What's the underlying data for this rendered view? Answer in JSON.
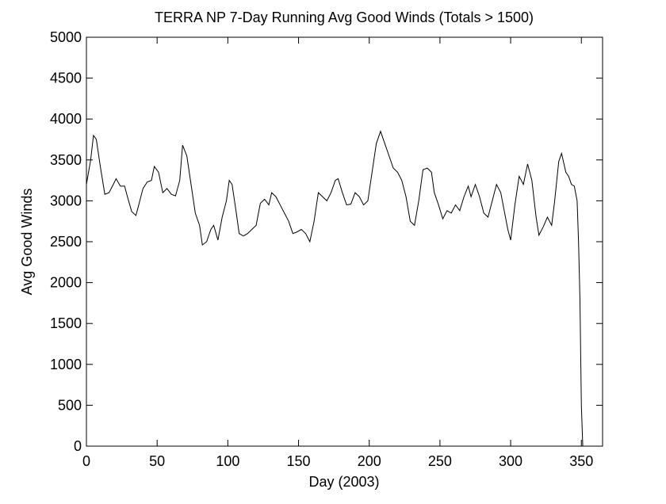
{
  "chart_data": {
    "type": "line",
    "title": "TERRA NP 7-Day Running Avg Good Winds (Totals > 1500)",
    "x_label": "Day (2003)",
    "y_label": "Avg Good Winds",
    "xlim": [
      0,
      365
    ],
    "ylim": [
      0,
      5000
    ],
    "xticks": [
      0,
      50,
      100,
      150,
      200,
      250,
      300,
      350
    ],
    "yticks": [
      0,
      500,
      1000,
      1500,
      2000,
      2500,
      3000,
      3500,
      4000,
      4500,
      5000
    ],
    "color": "#000000",
    "x": [
      0,
      3,
      5,
      7,
      10,
      13,
      16,
      19,
      21,
      24,
      27,
      29,
      32,
      35,
      37,
      40,
      43,
      46,
      48,
      51,
      54,
      57,
      60,
      63,
      66,
      68,
      71,
      74,
      77,
      80,
      82,
      85,
      88,
      90,
      93,
      96,
      99,
      101,
      103,
      106,
      108,
      111,
      114,
      117,
      120,
      123,
      126,
      129,
      131,
      134,
      137,
      140,
      143,
      146,
      149,
      152,
      155,
      158,
      161,
      164,
      167,
      170,
      173,
      176,
      178,
      181,
      184,
      187,
      190,
      193,
      196,
      199,
      202,
      205,
      208,
      211,
      214,
      217,
      220,
      223,
      226,
      229,
      232,
      235,
      238,
      241,
      244,
      246,
      249,
      252,
      255,
      258,
      261,
      264,
      267,
      270,
      272,
      275,
      278,
      281,
      284,
      287,
      290,
      293,
      295,
      298,
      300,
      303,
      306,
      309,
      312,
      315,
      318,
      320,
      323,
      326,
      329,
      331,
      334,
      336,
      339,
      341,
      343,
      345,
      347,
      348,
      349,
      350,
      351
    ],
    "values": [
      3200,
      3500,
      3800,
      3750,
      3400,
      3080,
      3100,
      3200,
      3270,
      3180,
      3180,
      3050,
      2870,
      2820,
      2950,
      3150,
      3230,
      3250,
      3420,
      3350,
      3100,
      3150,
      3080,
      3060,
      3250,
      3680,
      3550,
      3200,
      2850,
      2700,
      2460,
      2500,
      2650,
      2700,
      2520,
      2800,
      3000,
      3250,
      3200,
      2850,
      2600,
      2570,
      2600,
      2650,
      2700,
      2970,
      3020,
      2950,
      3100,
      3050,
      2950,
      2850,
      2750,
      2600,
      2620,
      2650,
      2600,
      2500,
      2750,
      3100,
      3050,
      3000,
      3100,
      3250,
      3270,
      3100,
      2950,
      2960,
      3100,
      3050,
      2950,
      3000,
      3350,
      3700,
      3850,
      3700,
      3550,
      3400,
      3350,
      3250,
      3050,
      2750,
      2700,
      3000,
      3380,
      3400,
      3350,
      3100,
      2950,
      2780,
      2880,
      2850,
      2950,
      2880,
      3050,
      3180,
      3050,
      3200,
      3050,
      2850,
      2800,
      3000,
      3200,
      3100,
      2920,
      2650,
      2520,
      2950,
      3300,
      3200,
      3450,
      3250,
      2800,
      2580,
      2680,
      2800,
      2700,
      2980,
      3480,
      3580,
      3350,
      3300,
      3200,
      3180,
      3000,
      2500,
      1800,
      500,
      0
    ]
  }
}
